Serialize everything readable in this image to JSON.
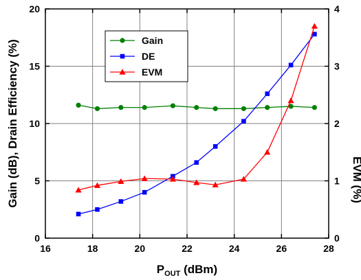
{
  "chart_data": {
    "type": "line",
    "grid": true,
    "legend": "top-left",
    "x_axis": {
      "label_main": "P",
      "label_sub": "OUT",
      "label_unit": " (dBm)",
      "range": [
        16,
        28
      ],
      "ticks": [
        16,
        18,
        20,
        22,
        24,
        26,
        28
      ]
    },
    "y_axis_left": {
      "label": "Gain (dB), Drain Efficiency (%)",
      "range": [
        0,
        20
      ],
      "ticks": [
        0,
        5,
        10,
        15,
        20
      ]
    },
    "y_axis_right": {
      "label": "EVM (%)",
      "range": [
        0,
        4
      ],
      "ticks": [
        0,
        1,
        2,
        3,
        4
      ]
    },
    "series": [
      {
        "name": "Gain",
        "axis": "left",
        "color": "#008000",
        "marker": "circle",
        "x": [
          17.4,
          18.2,
          19.2,
          20.2,
          21.4,
          22.4,
          23.2,
          24.4,
          25.4,
          26.4,
          27.4
        ],
        "y": [
          11.6,
          11.3,
          11.4,
          11.4,
          11.55,
          11.4,
          11.3,
          11.3,
          11.4,
          11.5,
          11.4
        ]
      },
      {
        "name": "DE",
        "axis": "left",
        "color": "#0000ff",
        "marker": "square",
        "x": [
          17.4,
          18.2,
          19.2,
          20.2,
          21.4,
          22.4,
          23.2,
          24.4,
          25.4,
          26.4,
          27.4
        ],
        "y": [
          2.1,
          2.5,
          3.2,
          4.0,
          5.4,
          6.6,
          8.0,
          10.2,
          12.6,
          15.1,
          17.8
        ]
      },
      {
        "name": "EVM",
        "axis": "right",
        "color": "#ff0000",
        "marker": "triangle",
        "x": [
          17.4,
          18.2,
          19.2,
          20.2,
          21.4,
          22.4,
          23.2,
          24.4,
          25.4,
          26.4,
          27.4
        ],
        "y": [
          0.84,
          0.92,
          0.99,
          1.04,
          1.03,
          0.97,
          0.93,
          1.03,
          1.5,
          2.4,
          3.7
        ]
      }
    ]
  }
}
